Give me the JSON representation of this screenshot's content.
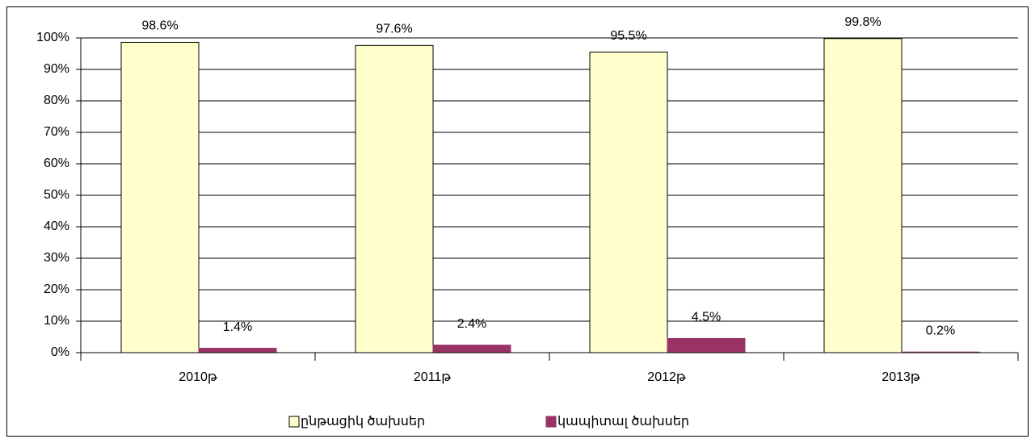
{
  "chart_data": {
    "type": "bar",
    "categories": [
      "2010թ",
      "2011թ",
      "2012թ",
      "2013թ"
    ],
    "series": [
      {
        "name": "ընթացիկ ծախսեր",
        "color": "#ffffcc",
        "values": [
          98.6,
          97.6,
          95.5,
          99.8
        ],
        "value_labels": [
          "98.6%",
          "97.6%",
          "95.5%",
          "99.8%"
        ]
      },
      {
        "name": "կապիտալ ծախսեր",
        "color": "#993366",
        "values": [
          1.4,
          2.4,
          4.5,
          0.2
        ],
        "value_labels": [
          "1.4%",
          "2.4%",
          "4.5%",
          "0.2%"
        ]
      }
    ],
    "ylim": [
      0,
      100
    ],
    "yticks": [
      {
        "value": 0,
        "label": "0%"
      },
      {
        "value": 10,
        "label": "10%"
      },
      {
        "value": 20,
        "label": "20%"
      },
      {
        "value": 30,
        "label": "30%"
      },
      {
        "value": 40,
        "label": "40%"
      },
      {
        "value": 50,
        "label": "50%"
      },
      {
        "value": 60,
        "label": "60%"
      },
      {
        "value": 70,
        "label": "70%"
      },
      {
        "value": 80,
        "label": "80%"
      },
      {
        "value": 90,
        "label": "90%"
      },
      {
        "value": 100,
        "label": "100%"
      }
    ],
    "grid": true,
    "legend": "bottom"
  }
}
